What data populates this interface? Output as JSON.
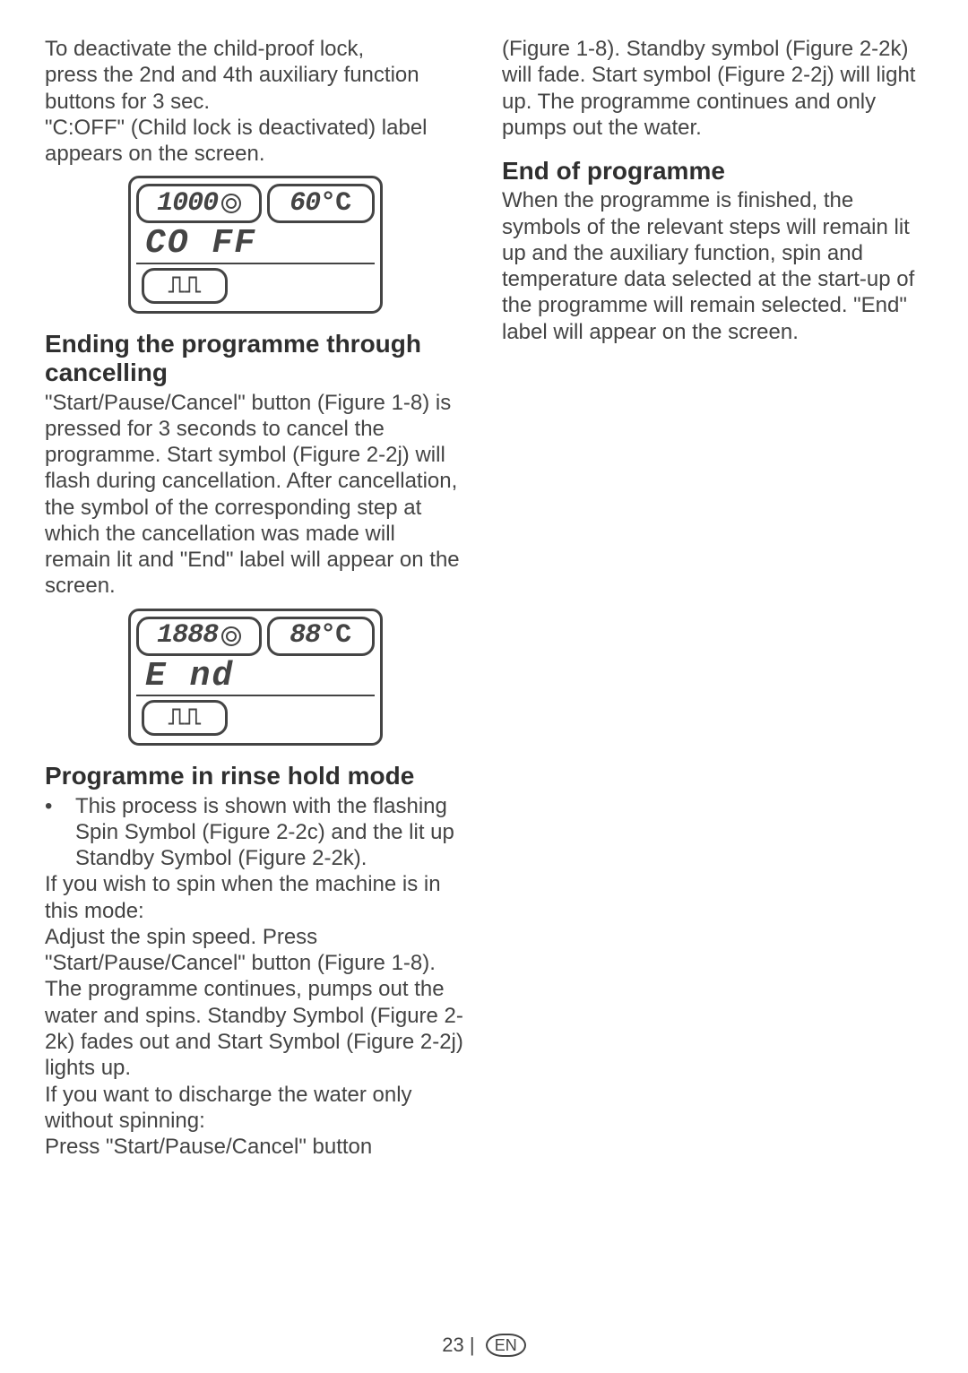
{
  "colors": {
    "text": "#444444",
    "heading": "#2f2f2f",
    "border": "#444444",
    "background": "#ffffff"
  },
  "left": {
    "p1a": "To deactivate the child-proof lock,",
    "p1b": "press the 2nd and 4th auxiliary function buttons for 3 sec.",
    "p1c": "\"C:OFF\" (Child lock is deactivated) label appears on the screen.",
    "disp1": {
      "spin": "1000",
      "temp": "60°",
      "temp_unit": "C",
      "mid": "CO FF",
      "rinse_icon": "rinse-hold-icon"
    },
    "h1": "Ending the programme through cancelling",
    "p2": "\"Start/Pause/Cancel\" button (Figure 1-8) is pressed for 3 seconds to cancel the programme. Start symbol (Figure 2-2j) will flash during cancellation. After cancellation, the symbol of the corresponding step at which the cancellation was made will remain lit and \"End\" label will appear on the screen.",
    "disp2": {
      "spin": "1888",
      "temp": "88°",
      "temp_unit": "C",
      "mid": "E nd",
      "rinse_icon": "rinse-hold-icon"
    },
    "h2": "Programme in rinse hold mode",
    "bullet": "This process is shown with the flashing Spin Symbol (Figure 2-2c) and the lit up Standby Symbol (Figure 2-2k).",
    "p3": "If you wish to spin when the machine is in this mode:",
    "p4": "Adjust the spin speed. Press \"Start/Pause/Cancel\" button (Figure 1-8). The programme continues, pumps out the water and spins. Standby Symbol (Figure 2-2k) fades out and Start Symbol (Figure 2-2j) lights up.",
    "p5": "If you want to discharge the water only without spinning:",
    "p6": "Press \"Start/Pause/Cancel\" button"
  },
  "right": {
    "p1": "(Figure 1-8). Standby symbol (Figure 2-2k) will fade. Start symbol (Figure 2-2j) will light up. The programme continues and only pumps out the water.",
    "h1": "End of programme",
    "p2": "When the programme is finished, the symbols of the relevant steps will remain lit up and the auxiliary function, spin and temperature data selected at the start-up of the programme will remain selected. \"End\" label will appear on the screen."
  },
  "footer": {
    "page": "23",
    "lang": "EN"
  }
}
